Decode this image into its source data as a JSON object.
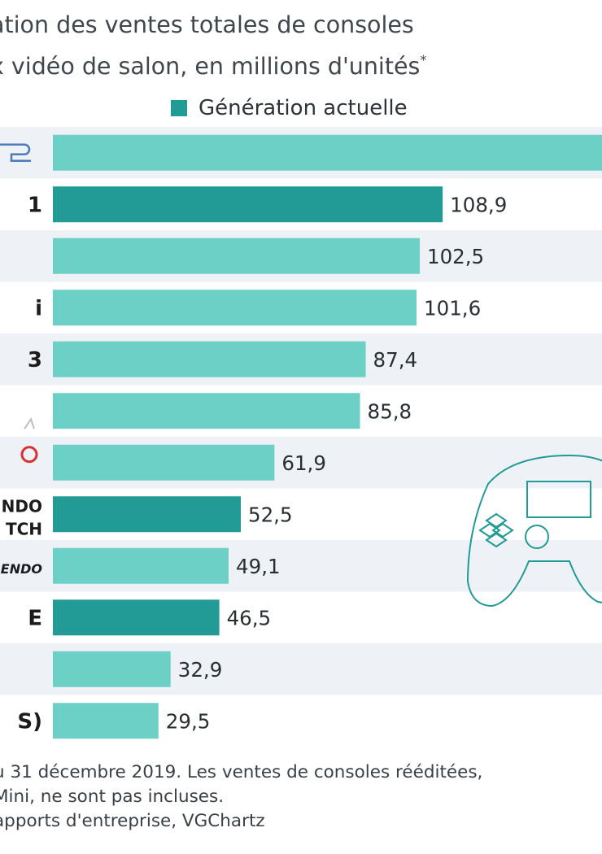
{
  "chart_data": {
    "type": "bar",
    "orientation": "horizontal",
    "title": [
      "ation des ventes totales de consoles",
      "x vidéo de salon, en millions d'unités"
    ],
    "title_marker": "*",
    "legend": [
      {
        "name": "Génération actuelle",
        "color": "#229b96"
      }
    ],
    "categories": [
      "",
      "",
      "",
      "",
      "",
      "",
      "",
      "",
      "",
      "",
      "",
      ""
    ],
    "values": [
      155,
      108.9,
      102.5,
      101.6,
      87.4,
      85.8,
      61.9,
      52.5,
      49.1,
      46.5,
      32.9,
      29.5
    ],
    "value_labels": [
      "",
      "108,9",
      "102,5",
      "101,6",
      "87,4",
      "85,8",
      "61,9",
      "52,5",
      "49,1",
      "46,5",
      "32,9",
      "29,5"
    ],
    "current_generation": [
      false,
      true,
      false,
      false,
      false,
      false,
      false,
      true,
      false,
      true,
      false,
      false
    ],
    "colors": {
      "current": "#229b96",
      "previous": "#6dd0c7",
      "row_alt": "#eef1f5"
    },
    "grid": false,
    "legend_position": "top"
  },
  "logos": [
    {
      "text": "",
      "icon": "playstation-2-logo"
    },
    {
      "text": "1",
      "icon": "playstation-4-logo"
    },
    {
      "text": "",
      "icon": "playstation-logo"
    },
    {
      "text": "i",
      "icon": "wii-logo"
    },
    {
      "text": "3",
      "icon": "playstation-3-logo"
    },
    {
      "text": "",
      "icon": "xbox-360-logo"
    },
    {
      "text": "",
      "icon": "game-boy-advance-logo"
    },
    {
      "text": "NDO\nTCH",
      "icon": "nintendo-switch-logo"
    },
    {
      "text": "ENDO",
      "icon": "super-nintendo-logo"
    },
    {
      "text": "E",
      "icon": "xbox-one-logo"
    },
    {
      "text": "",
      "icon": "nes-logo"
    },
    {
      "text": "S)",
      "icon": "sega-genesis-logo"
    }
  ],
  "footer": {
    "line1": "u 31 décembre 2019. Les ventes de consoles rééditées,",
    "line2": "Mini, ne sont pas incluses.",
    "line3": "apports d'entreprise, VGChartz"
  },
  "decor": {
    "icon": "gamepad-icon",
    "watermark_icon": "watermark-logo"
  }
}
